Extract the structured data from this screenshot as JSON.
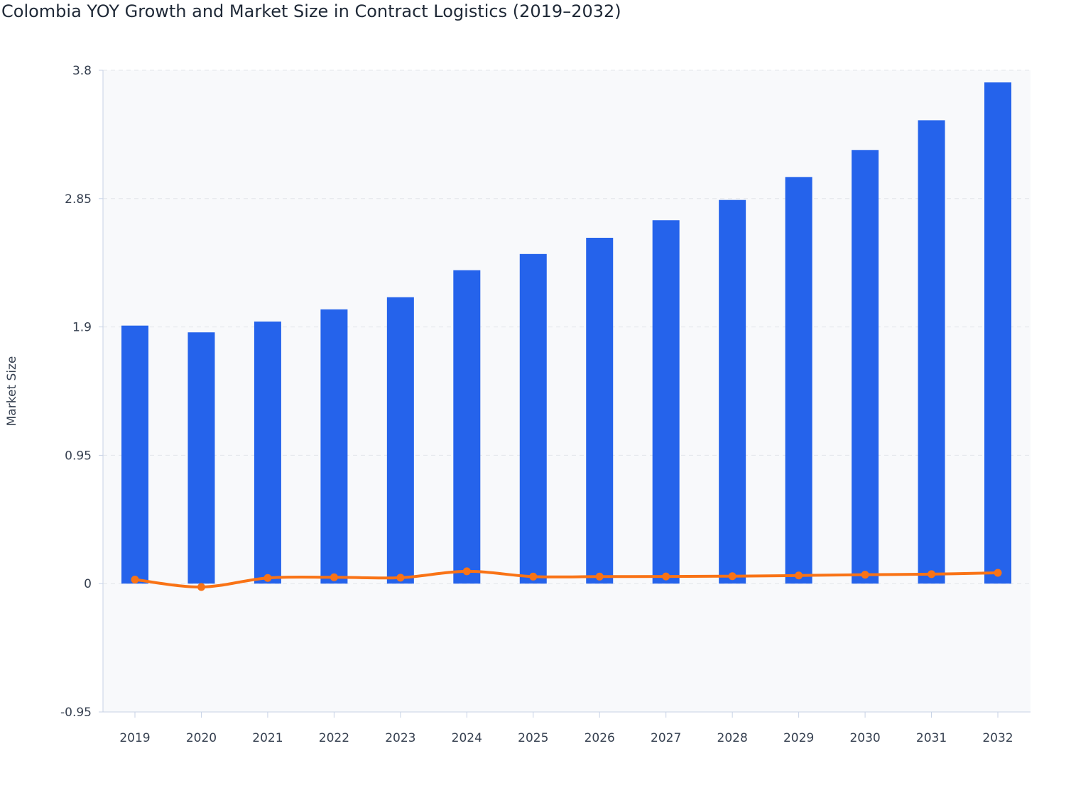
{
  "chart_data": {
    "type": "bar+line",
    "title": "Colombia YOY Growth and Market Size in Contract Logistics (2019–2032)",
    "ylabel": "Market Size",
    "xlabel": "",
    "ylim": [
      -0.95,
      3.8
    ],
    "yticks": [
      "3.8",
      "2.85",
      "1.9",
      "0.95",
      "0",
      "-0.95"
    ],
    "ytick_values": [
      3.8,
      2.85,
      1.9,
      0.95,
      0,
      -0.95
    ],
    "grid": true,
    "categories": [
      "2019",
      "2020",
      "2021",
      "2022",
      "2023",
      "2024",
      "2025",
      "2026",
      "2027",
      "2028",
      "2029",
      "2030",
      "2031",
      "2032"
    ],
    "series": [
      {
        "type": "bar",
        "color": "#2563eb",
        "values": [
          1.91,
          1.86,
          1.94,
          2.03,
          2.12,
          2.32,
          2.44,
          2.56,
          2.69,
          2.84,
          3.01,
          3.21,
          3.43,
          3.71
        ]
      },
      {
        "type": "line",
        "color": "#f97316",
        "values": [
          0.03,
          -0.025,
          0.042,
          0.047,
          0.044,
          0.091,
          0.052,
          0.052,
          0.053,
          0.055,
          0.06,
          0.066,
          0.07,
          0.08
        ]
      }
    ]
  }
}
